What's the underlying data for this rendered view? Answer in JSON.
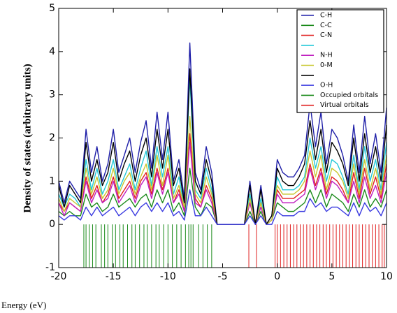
{
  "chart_data": {
    "type": "line",
    "xlabel": "Energy (eV)",
    "ylabel": "Density of states (arbitrary units)",
    "xlim": [
      -20,
      10
    ],
    "ylim": [
      -1,
      5
    ],
    "xticks": [
      -20,
      -15,
      -10,
      -5,
      0,
      5,
      10
    ],
    "yticks": [
      -1,
      0,
      1,
      2,
      3,
      4,
      5
    ],
    "grid": false,
    "legend": "upper right",
    "x": [
      -20,
      -19.5,
      -19,
      -18.5,
      -18,
      -17.5,
      -17,
      -16.5,
      -16,
      -15.5,
      -15,
      -14.5,
      -14,
      -13.5,
      -13,
      -12.5,
      -12,
      -11.5,
      -11,
      -10.5,
      -10,
      -9.5,
      -9,
      -8.5,
      -8,
      -7.5,
      -7,
      -6.5,
      -6,
      -5.5,
      -5,
      -4.5,
      -4,
      -3.5,
      -3,
      -2.5,
      -2,
      -1.5,
      -1,
      -0.5,
      0,
      0.5,
      1,
      1.5,
      2,
      2.5,
      3,
      3.5,
      4,
      4.5,
      5,
      5.5,
      6,
      6.5,
      7,
      7.5,
      8,
      8.5,
      9,
      9.5,
      10
    ],
    "stick_top": 0,
    "stick_bottom": -1,
    "series": [
      {
        "name": "C-H",
        "color": "#1f1fa8",
        "values": [
          1.0,
          0.5,
          1.0,
          0.8,
          0.6,
          2.2,
          1.2,
          1.8,
          1.0,
          1.4,
          2.2,
          1.2,
          1.6,
          2.0,
          1.2,
          1.9,
          2.4,
          1.3,
          2.6,
          1.5,
          2.6,
          1.0,
          1.5,
          0.6,
          4.2,
          1.2,
          0.8,
          1.8,
          1.2,
          0,
          0,
          0,
          0,
          0,
          0,
          1.0,
          0,
          0.9,
          0,
          0.2,
          1.5,
          1.2,
          1.1,
          1.1,
          1.3,
          1.6,
          2.8,
          1.8,
          2.6,
          1.4,
          2.2,
          2.0,
          1.6,
          1.0,
          2.3,
          1.2,
          2.5,
          1.4,
          2.1,
          1.2,
          2.7
        ]
      },
      {
        "name": "C-C",
        "color": "#1a8a1a",
        "values": [
          0.3,
          0.2,
          0.3,
          0.2,
          0.2,
          0.7,
          0.4,
          0.5,
          0.3,
          0.4,
          0.7,
          0.4,
          0.5,
          0.6,
          0.4,
          0.6,
          0.7,
          0.4,
          0.8,
          0.5,
          0.8,
          0.3,
          0.5,
          0.2,
          1.3,
          0.4,
          0.2,
          0.5,
          0.4,
          0,
          0,
          0,
          0,
          0,
          0,
          0.3,
          0,
          0.3,
          0,
          0.1,
          0.5,
          0.4,
          0.3,
          0.3,
          0.4,
          0.5,
          0.8,
          0.5,
          0.8,
          0.4,
          0.7,
          0.6,
          0.5,
          0.3,
          0.7,
          0.4,
          0.8,
          0.4,
          0.6,
          0.4,
          0.8
        ]
      },
      {
        "name": "C-N",
        "color": "#e02020",
        "values": [
          0.5,
          0.3,
          0.5,
          0.4,
          0.3,
          1.1,
          0.6,
          0.9,
          0.5,
          0.7,
          1.1,
          0.6,
          0.8,
          1.0,
          0.6,
          1.0,
          1.2,
          0.7,
          1.3,
          0.8,
          1.3,
          0.5,
          0.8,
          0.3,
          2.1,
          0.6,
          0.4,
          0.9,
          0.6,
          0,
          0,
          0,
          0,
          0,
          0,
          0.5,
          0,
          0.5,
          0,
          0.1,
          0.8,
          0.6,
          0.6,
          0.6,
          0.7,
          0.8,
          1.4,
          0.9,
          1.3,
          0.7,
          1.1,
          1.0,
          0.8,
          0.5,
          1.2,
          0.6,
          1.3,
          0.7,
          1.1,
          0.6,
          1.4
        ]
      },
      {
        "color": "#22c8d8",
        "values": [
          0.7,
          0.4,
          0.7,
          0.6,
          0.4,
          1.5,
          0.8,
          1.3,
          0.7,
          1.0,
          1.5,
          0.8,
          1.1,
          1.4,
          0.8,
          1.3,
          1.7,
          0.9,
          1.8,
          1.1,
          1.8,
          0.7,
          1.1,
          0.4,
          3.4,
          0.8,
          0.6,
          1.3,
          0.8,
          0,
          0,
          0,
          0,
          0,
          0,
          0.7,
          0,
          0.6,
          0,
          0.1,
          1.1,
          0.8,
          0.8,
          0.8,
          0.9,
          1.1,
          2.0,
          1.3,
          1.8,
          1.0,
          1.5,
          1.4,
          1.1,
          0.7,
          1.6,
          0.8,
          1.8,
          1.0,
          1.5,
          0.8,
          1.9
        ]
      },
      {
        "name": "N-H",
        "color": "#c020c0",
        "values": [
          0.5,
          0.2,
          0.5,
          0.4,
          0.3,
          1.0,
          0.5,
          0.8,
          0.5,
          0.6,
          1.0,
          0.5,
          0.7,
          0.9,
          0.5,
          0.9,
          1.1,
          0.6,
          1.2,
          0.7,
          1.2,
          0.5,
          0.7,
          0.3,
          1.9,
          0.5,
          0.4,
          0.8,
          0.5,
          0,
          0,
          0,
          0,
          0,
          0,
          0.5,
          0,
          0.4,
          0,
          0.1,
          0.7,
          0.5,
          0.5,
          0.5,
          0.6,
          0.7,
          1.3,
          0.8,
          1.2,
          0.6,
          1.0,
          0.9,
          0.7,
          0.5,
          1.0,
          0.5,
          1.1,
          0.6,
          0.9,
          0.5,
          1.2
        ]
      },
      {
        "name": "0-M",
        "color": "#c8c830",
        "values": [
          0.6,
          0.3,
          0.6,
          0.5,
          0.4,
          1.3,
          0.7,
          1.1,
          0.6,
          0.8,
          1.3,
          0.7,
          1.0,
          1.2,
          0.7,
          1.1,
          1.4,
          0.8,
          1.6,
          0.9,
          1.6,
          0.6,
          0.9,
          0.4,
          2.5,
          0.7,
          0.5,
          1.1,
          0.7,
          0,
          0,
          0,
          0,
          0,
          0,
          0.6,
          0,
          0.5,
          0,
          0.1,
          0.9,
          0.7,
          0.7,
          0.7,
          0.8,
          1.0,
          1.7,
          1.1,
          1.6,
          0.8,
          1.3,
          1.2,
          1.0,
          0.6,
          1.4,
          0.7,
          1.5,
          0.8,
          1.3,
          0.7,
          1.6
        ]
      },
      {
        "color": "#000000",
        "values": [
          0.9,
          0.4,
          0.9,
          0.7,
          0.5,
          1.9,
          1.0,
          1.5,
          0.9,
          1.2,
          1.9,
          1.0,
          1.4,
          1.7,
          1.0,
          1.6,
          2.0,
          1.1,
          2.2,
          1.3,
          2.2,
          0.9,
          1.3,
          0.5,
          3.6,
          1.0,
          0.7,
          1.5,
          1.0,
          0,
          0,
          0,
          0,
          0,
          0,
          0.9,
          0,
          0.8,
          0,
          0.2,
          1.3,
          1.0,
          0.9,
          0.9,
          1.1,
          1.4,
          2.4,
          1.5,
          2.2,
          1.2,
          1.9,
          1.7,
          1.4,
          0.9,
          2.0,
          1.0,
          2.1,
          1.2,
          1.8,
          1.0,
          2.3
        ]
      },
      {
        "name": "O-H",
        "color": "#3a3ae0",
        "values": [
          0.2,
          0.1,
          0.2,
          0.2,
          0.1,
          0.4,
          0.2,
          0.4,
          0.2,
          0.3,
          0.4,
          0.2,
          0.3,
          0.4,
          0.2,
          0.4,
          0.5,
          0.3,
          0.5,
          0.3,
          0.5,
          0.2,
          0.3,
          0.1,
          0.8,
          0.2,
          0.2,
          0.4,
          0.2,
          0,
          0,
          0,
          0,
          0,
          0,
          0.2,
          0,
          0.2,
          0,
          0.0,
          0.3,
          0.2,
          0.2,
          0.2,
          0.3,
          0.3,
          0.6,
          0.4,
          0.5,
          0.3,
          0.4,
          0.4,
          0.3,
          0.2,
          0.5,
          0.2,
          0.5,
          0.3,
          0.4,
          0.2,
          0.5
        ]
      },
      {
        "name": "Occupied orbitals",
        "type": "stick",
        "color": "#1a8a1a",
        "x": [
          -17.7,
          -17.5,
          -17.2,
          -16.9,
          -16.6,
          -16.1,
          -15.8,
          -15.5,
          -15.1,
          -14.8,
          -14.4,
          -14.1,
          -13.7,
          -13.3,
          -13.0,
          -12.6,
          -12.2,
          -11.9,
          -11.5,
          -11.1,
          -10.8,
          -10.4,
          -10.0,
          -9.6,
          -9.2,
          -8.8,
          -8.4,
          -8.1,
          -7.9,
          -7.7,
          -7.2,
          -6.8,
          -6.4,
          -6.0
        ]
      },
      {
        "name": "Virtual orbitals",
        "type": "stick",
        "color": "#e02020",
        "x": [
          -2.6,
          -1.9,
          -0.2,
          0.0,
          0.3,
          0.6,
          0.9,
          1.2,
          1.5,
          1.8,
          2.1,
          2.4,
          2.7,
          3.0,
          3.3,
          3.6,
          3.9,
          4.2,
          4.5,
          4.8,
          5.1,
          5.4,
          5.7,
          6.0,
          6.3,
          6.6,
          6.9,
          7.2,
          7.5,
          7.8,
          8.1,
          8.4,
          8.7,
          9.0,
          9.3,
          9.6,
          9.8
        ]
      }
    ]
  }
}
